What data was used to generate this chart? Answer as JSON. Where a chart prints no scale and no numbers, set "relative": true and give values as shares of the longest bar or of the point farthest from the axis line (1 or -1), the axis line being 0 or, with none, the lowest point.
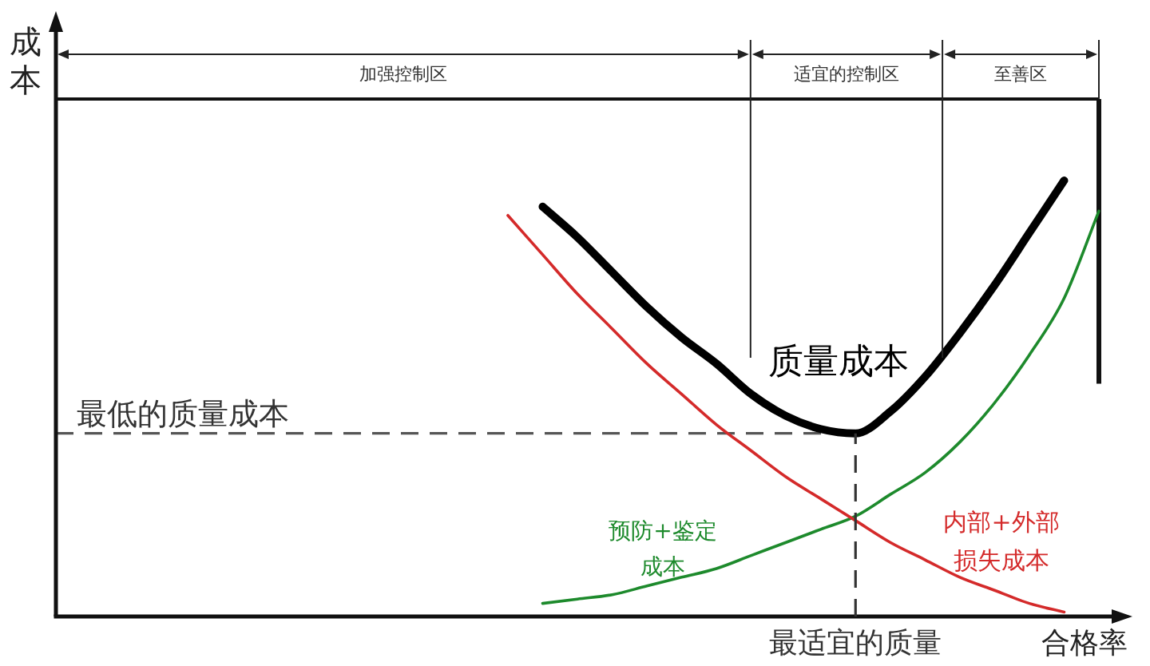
{
  "chart_data": {
    "type": "line",
    "relative": true,
    "xlabel": "合格率",
    "ylabel": "成本",
    "categories": [
      null,
      null,
      null,
      null,
      null,
      null,
      null,
      null,
      null,
      null,
      null,
      null,
      null,
      null,
      null,
      null,
      null,
      null,
      null,
      null,
      null,
      null,
      null,
      null,
      null,
      null,
      null,
      null,
      null,
      null,
      null
    ],
    "series": [
      {
        "name": "质量成本",
        "color": "#000000",
        "values": [
          null,
          null,
          null,
          null,
          null,
          null,
          null,
          null,
          null,
          null,
          null,
          null,
          null,
          null,
          0.94,
          0.87,
          0.79,
          0.71,
          0.64,
          0.58,
          0.51,
          0.46,
          0.43,
          0.42,
          0.47,
          0.55,
          0.65,
          0.76,
          0.88,
          1.0,
          null
        ]
      },
      {
        "name": "内部+外部损失成本",
        "color": "#d42a2a",
        "values": [
          null,
          null,
          null,
          null,
          null,
          null,
          null,
          null,
          null,
          null,
          null,
          null,
          null,
          0.92,
          0.83,
          0.74,
          0.66,
          0.58,
          0.51,
          0.44,
          0.38,
          0.32,
          0.27,
          0.22,
          0.17,
          0.13,
          0.09,
          0.06,
          0.03,
          0.01,
          null
        ]
      },
      {
        "name": "预防+鉴定成本",
        "color": "#1d8a2c",
        "values": [
          null,
          null,
          null,
          null,
          null,
          null,
          null,
          null,
          null,
          null,
          null,
          null,
          null,
          null,
          0.03,
          0.04,
          0.05,
          0.07,
          0.09,
          0.11,
          0.14,
          0.17,
          0.2,
          0.23,
          0.28,
          0.33,
          0.4,
          0.49,
          0.6,
          0.73,
          0.93
        ]
      }
    ],
    "ref_lines": [
      {
        "axis": "y",
        "value": 0.42,
        "label": "最低的质量成本",
        "color": "#555555",
        "line_style": "dashed"
      }
    ],
    "annotations": [
      "加强控制区",
      "适宜的控制区",
      "至善区",
      "最适宜的质量"
    ],
    "legend": false,
    "marker": "none",
    "line_style": "solid",
    "grid": false
  }
}
